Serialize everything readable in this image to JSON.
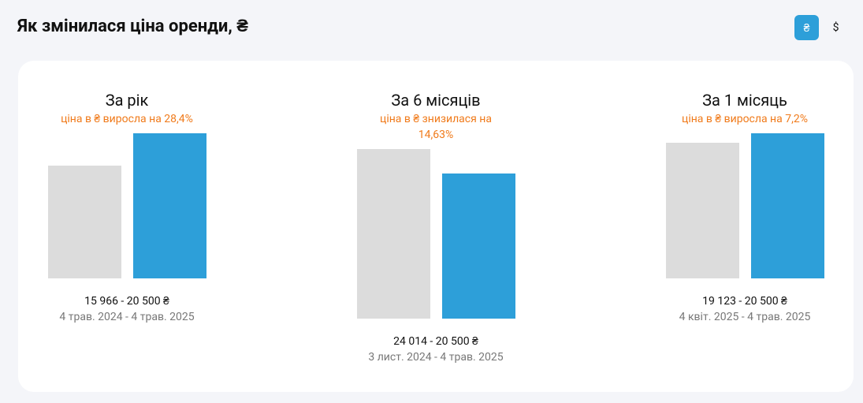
{
  "header": {
    "title": "Як змінилася ціна оренди, ₴",
    "buttons": [
      "₴",
      "$"
    ],
    "active_button": 0
  },
  "chart_data": [
    {
      "type": "bar",
      "title": "За рік",
      "subtitle": "ціна в ₴ виросла на 28,4%",
      "values": [
        15966,
        20500
      ],
      "colors": [
        "#dcdcdc",
        "#2d9fd9"
      ],
      "value_label": "15 966 - 20 500 ₴",
      "date_label": "4 трав. 2024 - 4 трав. 2025"
    },
    {
      "type": "bar",
      "title": "За 6 місяців",
      "subtitle": "ціна в ₴ знизилася на 14,63%",
      "values": [
        24014,
        20500
      ],
      "colors": [
        "#dcdcdc",
        "#2d9fd9"
      ],
      "value_label": "24 014 - 20 500 ₴",
      "date_label": "3 лист. 2024 - 4 трав. 2025"
    },
    {
      "type": "bar",
      "title": "За 1 місяць",
      "subtitle": "ціна в ₴ виросла на 7,2%",
      "values": [
        19123,
        20500
      ],
      "colors": [
        "#dcdcdc",
        "#2d9fd9"
      ],
      "value_label": "19 123 - 20 500 ₴",
      "date_label": "4 квіт. 2025 - 4 трав. 2025"
    }
  ]
}
